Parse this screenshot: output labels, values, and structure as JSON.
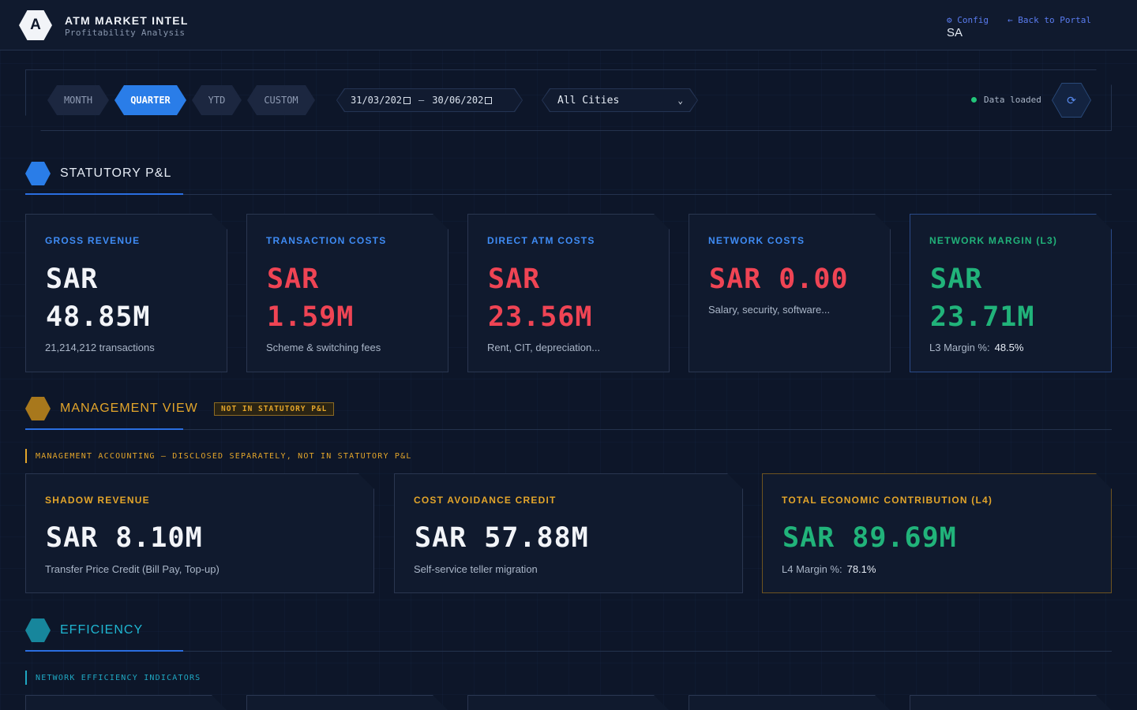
{
  "header": {
    "logo_letter": "A",
    "title": "ATM MARKET INTEL",
    "subtitle": "Profitability Analysis",
    "config_link": "⚙ Config",
    "back_link": "← Back to Portal",
    "user": "SA"
  },
  "filters": {
    "periods": [
      "MONTH",
      "QUARTER",
      "YTD",
      "CUSTOM"
    ],
    "active_period": "QUARTER",
    "date_from": "31/03/202",
    "date_separator": "—",
    "date_to": "30/06/202",
    "city": "All Cities",
    "status": "Data loaded",
    "refresh_icon": "⟳"
  },
  "statutory": {
    "title": "STATUTORY P&L",
    "cards": [
      {
        "label": "GROSS REVENUE",
        "value_line1": "SAR",
        "value_line2": "48.85M",
        "sub": "21,214,212 transactions"
      },
      {
        "label": "TRANSACTION COSTS",
        "value_line1": "SAR",
        "value_line2": "1.59M",
        "sub": "Scheme & switching fees"
      },
      {
        "label": "DIRECT ATM COSTS",
        "value_line1": "SAR",
        "value_line2": "23.56M",
        "sub": "Rent, CIT, depreciation..."
      },
      {
        "label": "NETWORK COSTS",
        "value_line1": "SAR 0.00",
        "sub": "Salary, security, software..."
      },
      {
        "label": "NETWORK MARGIN (L3)",
        "value_line1": "SAR",
        "value_line2": "23.71M",
        "sub_label": "L3 Margin %:",
        "sub_value": "48.5%"
      }
    ]
  },
  "management": {
    "title": "MANAGEMENT VIEW",
    "tag": "NOT IN STATUTORY P&L",
    "note": "MANAGEMENT ACCOUNTING — DISCLOSED SEPARATELY, NOT IN STATUTORY P&L",
    "cards": [
      {
        "label": "SHADOW REVENUE",
        "value": "SAR 8.10M",
        "sub": "Transfer Price Credit (Bill Pay, Top-up)"
      },
      {
        "label": "COST AVOIDANCE CREDIT",
        "value": "SAR 57.88M",
        "sub": "Self-service teller migration"
      },
      {
        "label": "TOTAL ECONOMIC CONTRIBUTION (L4)",
        "value": "SAR 89.69M",
        "sub_label": "L4 Margin %:",
        "sub_value": "78.1%"
      }
    ]
  },
  "efficiency": {
    "title": "EFFICIENCY",
    "note": "NETWORK EFFICIENCY INDICATORS"
  },
  "colors": {
    "accent_blue": "#2a7de8",
    "label_blue": "#3f8cf5",
    "value_red": "#ef4454",
    "value_green": "#21b37a",
    "amber": "#e3a52a",
    "teal": "#1fa7c2"
  }
}
